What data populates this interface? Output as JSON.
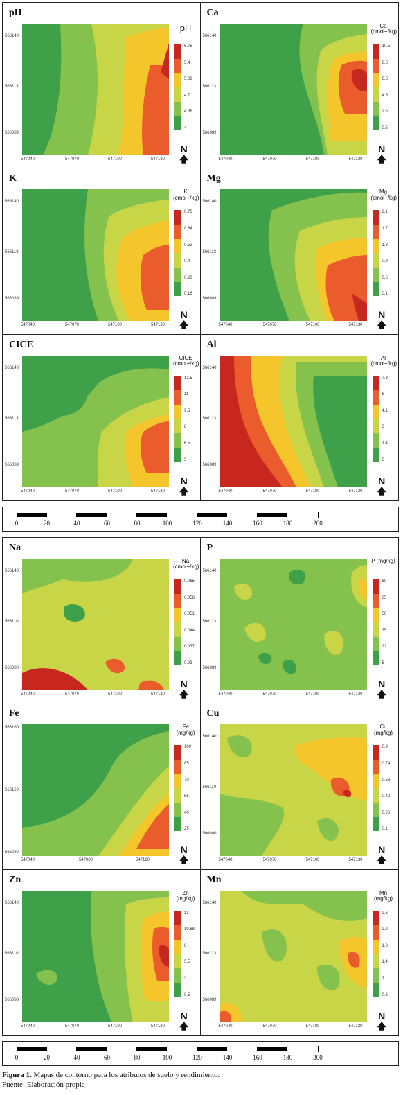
{
  "maps_top": [
    {
      "id": "ph",
      "title": "pH",
      "legend_title": "pH",
      "legend_big": true,
      "legend_values": [
        "6.75",
        "5.4",
        "5.02",
        "4.7",
        "4.36",
        "4"
      ],
      "yticks": [
        "566140",
        "566113",
        "566089"
      ],
      "xticks": [
        "547040",
        "547070",
        "547100",
        "547130"
      ],
      "colors": [
        "#c8271f",
        "#ea5c2b",
        "#f4c62c",
        "#c7d546",
        "#84c14d",
        "#3fa04a"
      ]
    },
    {
      "id": "ca",
      "title": "Ca",
      "legend_title": "Ca (cmol+/kg)",
      "legend_big": false,
      "legend_values": [
        "10.5",
        "8.5",
        "6.5",
        "4.5",
        "2.5",
        "0.5"
      ],
      "yticks": [
        "566140",
        "566113",
        "566089"
      ],
      "xticks": [
        "547040",
        "547070",
        "547100",
        "547130"
      ],
      "colors": [
        "#c8271f",
        "#ea5c2b",
        "#f4c62c",
        "#c7d546",
        "#84c14d",
        "#3fa04a"
      ]
    },
    {
      "id": "k",
      "title": "K",
      "legend_title": "K (cmol+/kg)",
      "legend_big": false,
      "legend_values": [
        "0.76",
        "0.64",
        "0.52",
        "0.4",
        "0.28",
        "0.16"
      ],
      "yticks": [
        "566140",
        "566113",
        "566089"
      ],
      "xticks": [
        "547040",
        "547070",
        "547100",
        "547130"
      ],
      "colors": [
        "#c8271f",
        "#ea5c2b",
        "#f4c62c",
        "#c7d546",
        "#84c14d",
        "#3fa04a"
      ]
    },
    {
      "id": "mg",
      "title": "Mg",
      "legend_title": "Mg (cmol+/kg)",
      "legend_big": false,
      "legend_values": [
        "2.1",
        "1.7",
        "1.3",
        "0.9",
        "0.5",
        "0.1"
      ],
      "yticks": [
        "566140",
        "566113",
        "566089"
      ],
      "xticks": [
        "547040",
        "547070",
        "547100",
        "547130"
      ],
      "colors": [
        "#c8271f",
        "#ea5c2b",
        "#f4c62c",
        "#c7d546",
        "#84c14d",
        "#3fa04a"
      ]
    },
    {
      "id": "cice",
      "title": "CICE",
      "legend_title": "CICE (cmol+/kg)",
      "legend_big": false,
      "legend_values": [
        "12.5",
        "11",
        "9.5",
        "8",
        "6.5",
        "5"
      ],
      "yticks": [
        "566140",
        "566113",
        "566089"
      ],
      "xticks": [
        "547040",
        "547070",
        "547100",
        "547130"
      ],
      "colors": [
        "#c8271f",
        "#ea5c2b",
        "#f4c62c",
        "#c7d546",
        "#84c14d",
        "#3fa04a"
      ]
    },
    {
      "id": "al",
      "title": "Al",
      "legend_title": "Al (cmol+/kg)",
      "legend_big": false,
      "legend_values": [
        "7.3",
        "6",
        "4.1",
        "3",
        "1.4",
        "0"
      ],
      "yticks": [
        "566140",
        "566113",
        "566089"
      ],
      "xticks": [
        "547040",
        "547070",
        "547100",
        "547130"
      ],
      "colors": [
        "#c8271f",
        "#ea5c2b",
        "#f4c62c",
        "#c7d546",
        "#84c14d",
        "#3fa04a"
      ]
    }
  ],
  "maps_bottom": [
    {
      "id": "na",
      "title": "Na",
      "legend_title": "Na (cmol+/kg)",
      "legend_big": false,
      "legend_values": [
        "0.065",
        "0.058",
        "0.051",
        "0.044",
        "0.037",
        "0.03"
      ],
      "yticks": [
        "566140",
        "566110",
        "566080"
      ],
      "xticks": [
        "547040",
        "547070",
        "547100",
        "547130"
      ],
      "colors": [
        "#c8271f",
        "#ea5c2b",
        "#f4c62c",
        "#c7d546",
        "#84c14d",
        "#3fa04a"
      ]
    },
    {
      "id": "p",
      "title": "P",
      "legend_title": "P (mg/kg)",
      "legend_big": false,
      "legend_values": [
        "80",
        "65",
        "50",
        "35",
        "22",
        "5"
      ],
      "yticks": [
        "566140",
        "566113",
        "566089"
      ],
      "xticks": [
        "547040",
        "547070",
        "547100",
        "547130"
      ],
      "colors": [
        "#c8271f",
        "#ea5c2b",
        "#f4c62c",
        "#c7d546",
        "#84c14d",
        "#3fa04a"
      ]
    },
    {
      "id": "fe",
      "title": "Fe",
      "legend_title": "Fe (mg/kg)",
      "legend_big": false,
      "legend_values": [
        "100",
        "85",
        "70",
        "55",
        "40",
        "25"
      ],
      "yticks": [
        "566160",
        "566120",
        "566080"
      ],
      "xticks": [
        "547040",
        "547080",
        "547120"
      ],
      "colors": [
        "#c8271f",
        "#ea5c2b",
        "#f4c62c",
        "#c7d546",
        "#84c14d",
        "#3fa04a"
      ]
    },
    {
      "id": "cu",
      "title": "Cu",
      "legend_title": "Cu (mg/kg)",
      "legend_big": false,
      "legend_values": [
        "0.9",
        "0.74",
        "0.58",
        "0.42",
        "0.26",
        "0.1"
      ],
      "yticks": [
        "566140",
        "566110",
        "566080"
      ],
      "xticks": [
        "547040",
        "547070",
        "547100",
        "547130"
      ],
      "colors": [
        "#c8271f",
        "#ea5c2b",
        "#f4c62c",
        "#c7d546",
        "#84c14d",
        "#3fa04a"
      ]
    },
    {
      "id": "zn",
      "title": "Zn",
      "legend_title": "Zn (mg/kg)",
      "legend_big": false,
      "legend_values": [
        "13",
        "10.88",
        "8",
        "5.5",
        "3",
        "0.5"
      ],
      "yticks": [
        "566140",
        "566110",
        "566080"
      ],
      "xticks": [
        "547040",
        "547070",
        "547100",
        "547130"
      ],
      "colors": [
        "#c8271f",
        "#ea5c2b",
        "#f4c62c",
        "#c7d546",
        "#84c14d",
        "#3fa04a"
      ]
    },
    {
      "id": "mn",
      "title": "Mn",
      "legend_title": "Mn (mg/kg)",
      "legend_big": false,
      "legend_values": [
        "2.6",
        "2.2",
        "1.8",
        "1.4",
        "1",
        "0.6"
      ],
      "yticks": [
        "566140",
        "566113",
        "566089"
      ],
      "xticks": [
        "547040",
        "547070",
        "547100",
        "547130"
      ],
      "colors": [
        "#c8271f",
        "#ea5c2b",
        "#f4c62c",
        "#c7d546",
        "#84c14d",
        "#3fa04a"
      ]
    }
  ],
  "north_label": "N",
  "north_arrow": "🡅",
  "scale_numbers": [
    "0",
    "20",
    "40",
    "60",
    "80",
    "100",
    "120",
    "140",
    "160",
    "180",
    "200"
  ],
  "caption": {
    "label": "Figura 1.",
    "text": " Mapas de contorno para los atributos de suelo y rendimiento.",
    "source": "Fuente: Elaboración propia"
  }
}
